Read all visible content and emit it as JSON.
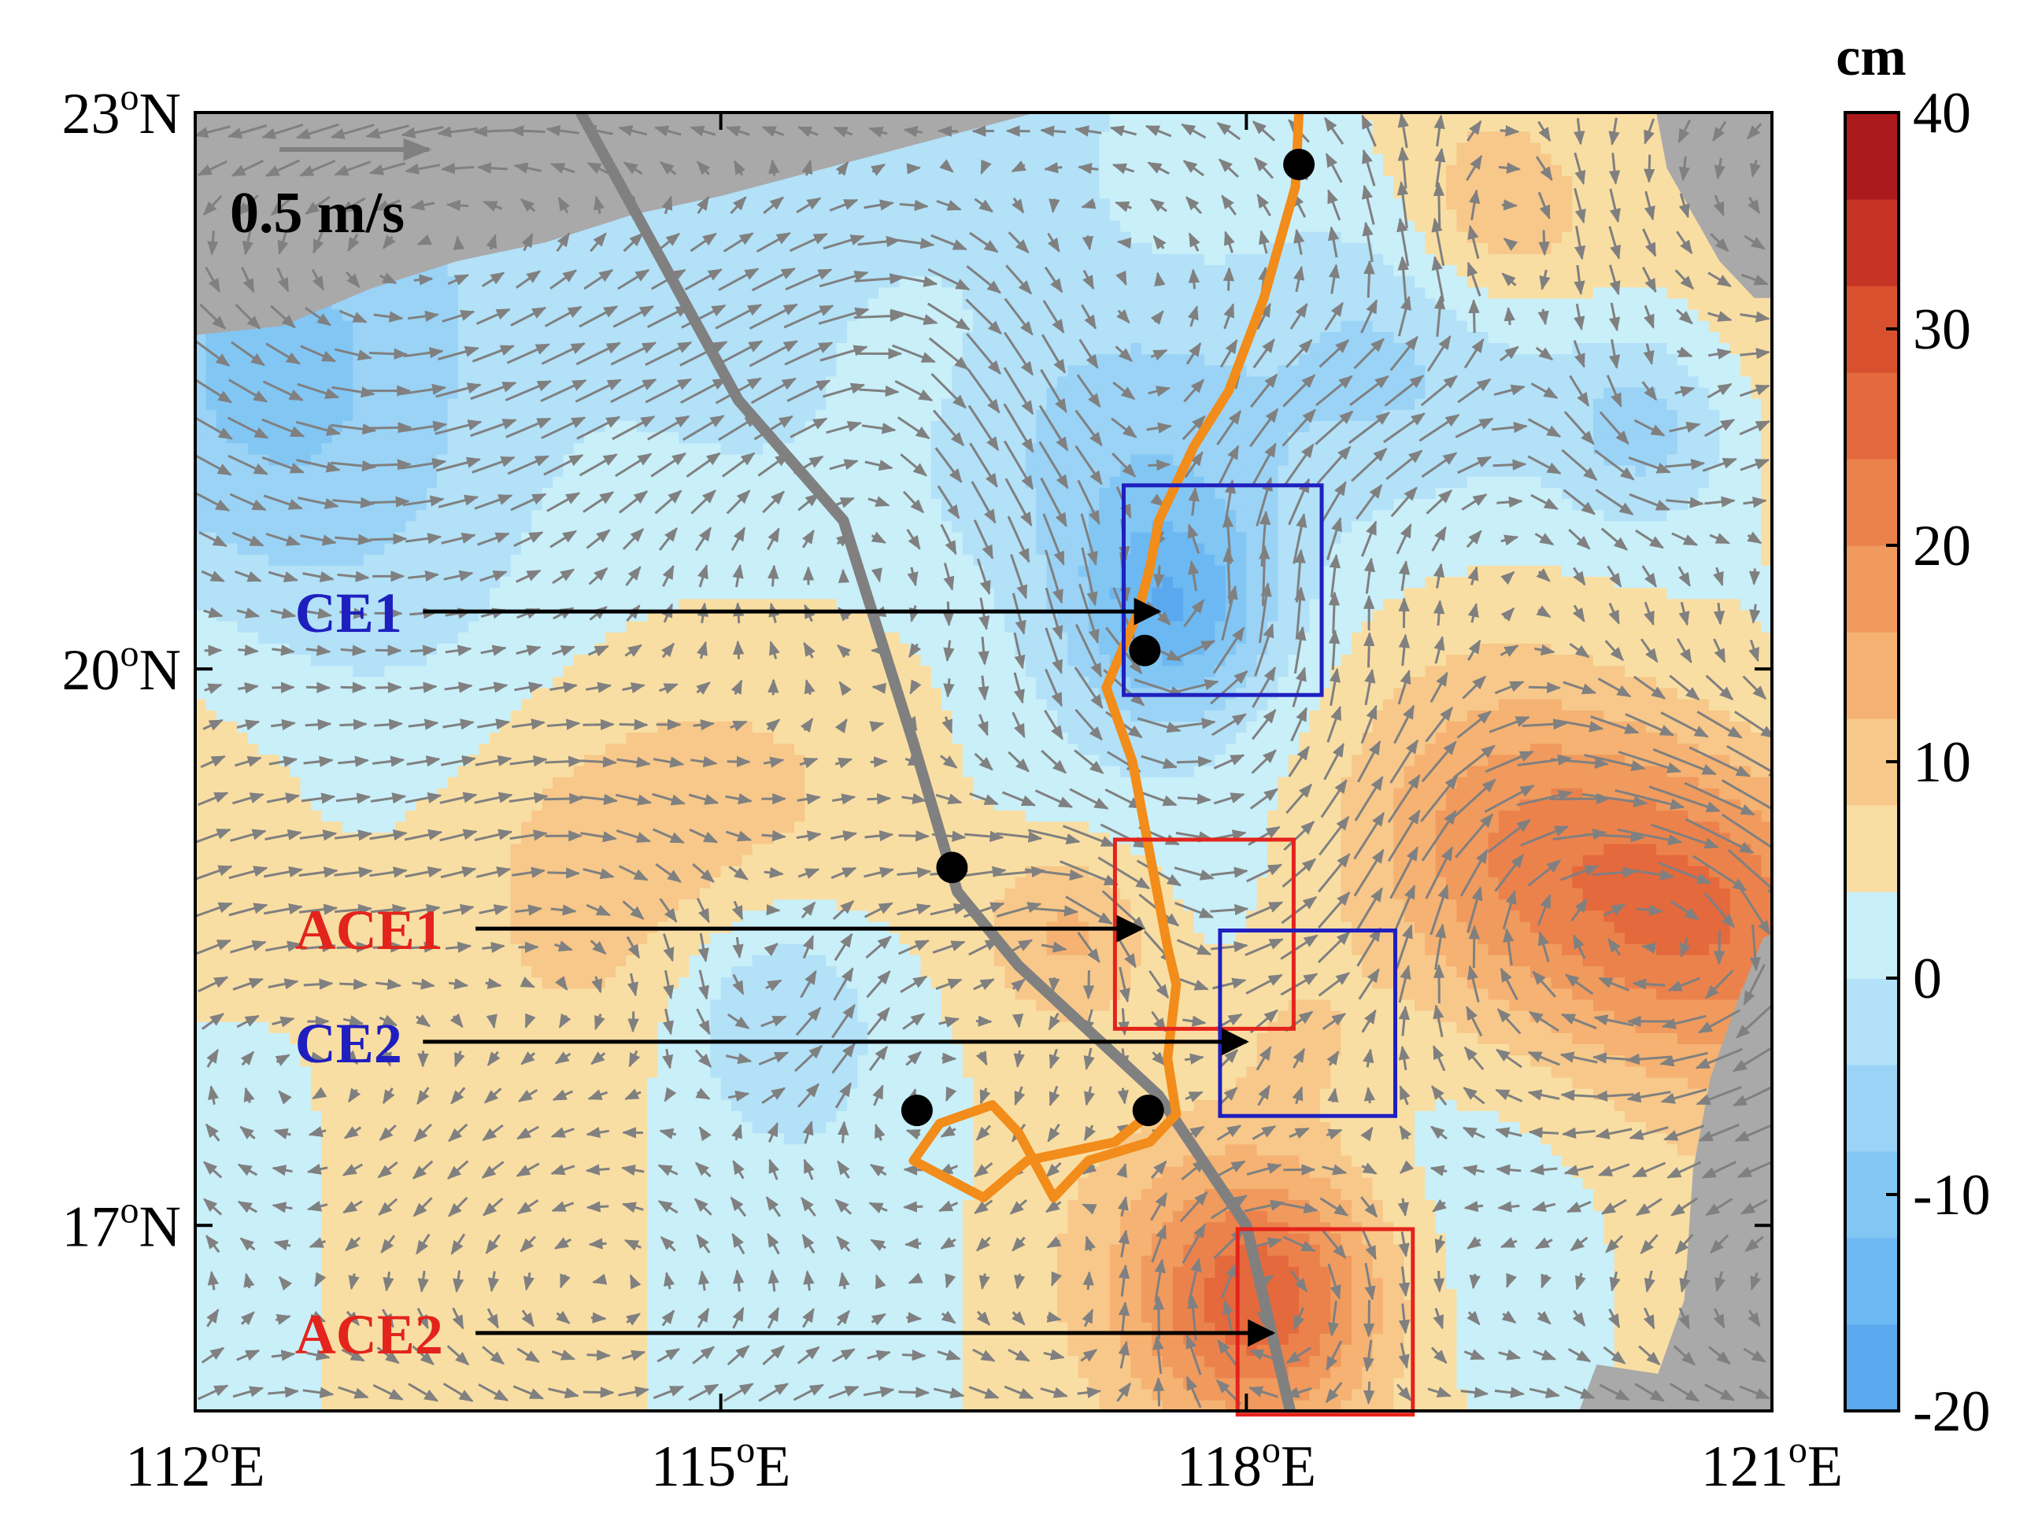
{
  "map": {
    "lon_range": [
      112,
      121
    ],
    "lat_range": [
      16,
      23
    ],
    "x_ticks": [
      {
        "value": 112,
        "deg": "112",
        "unit": "E"
      },
      {
        "value": 115,
        "deg": "115",
        "unit": "E"
      },
      {
        "value": 118,
        "deg": "118",
        "unit": "E"
      },
      {
        "value": 121,
        "deg": "121",
        "unit": "E"
      }
    ],
    "y_ticks": [
      {
        "value": 23,
        "deg": "23",
        "unit": "N"
      },
      {
        "value": 20,
        "deg": "20",
        "unit": "N"
      },
      {
        "value": 17,
        "deg": "17",
        "unit": "N"
      }
    ],
    "degree_symbol": "o",
    "land_color": "#a9a9a9",
    "vector_color": "#808080"
  },
  "scale_arrow": {
    "label": "0.5 m/s",
    "speed": 0.5
  },
  "colorbar": {
    "unit": "cm",
    "range": [
      -20,
      40
    ],
    "ticks": [
      "40",
      "30",
      "20",
      "10",
      "0",
      "-10",
      "-20"
    ],
    "colors": [
      "#5aa9ee",
      "#6cb8f2",
      "#82c6f4",
      "#9ad3f6",
      "#b2e1f8",
      "#c9eff9",
      "#f9dea3",
      "#f7c88a",
      "#f5b272",
      "#f09a5d",
      "#eb824c",
      "#e4693c",
      "#d9502f",
      "#c63425",
      "#aa1a1c"
    ]
  },
  "eddies": [
    {
      "name": "CE1",
      "color": "#1f1fbf",
      "label_color": "#1f1fbf",
      "lon_range": [
        117.3,
        118.43
      ],
      "lat_range": [
        19.86,
        20.99
      ],
      "arrow_from": [
        113.3,
        20.31
      ],
      "arrow_to": [
        117.5,
        20.31
      ],
      "label_at": [
        112.3,
        20.31
      ]
    },
    {
      "name": "ACE1",
      "color": "#e3241c",
      "label_color": "#e3241c",
      "lon_range": [
        117.25,
        118.27
      ],
      "lat_range": [
        18.06,
        19.08
      ],
      "arrow_from": [
        113.6,
        18.6
      ],
      "arrow_to": [
        117.4,
        18.6
      ],
      "label_at": [
        112.3,
        18.6
      ]
    },
    {
      "name": "CE2",
      "color": "#1f1fbf",
      "label_color": "#1f1fbf",
      "lon_range": [
        117.85,
        118.85
      ],
      "lat_range": [
        17.59,
        18.59
      ],
      "arrow_from": [
        113.3,
        17.99
      ],
      "arrow_to": [
        118.0,
        17.99
      ],
      "label_at": [
        112.3,
        17.99
      ]
    },
    {
      "name": "ACE2",
      "color": "#e3241c",
      "label_color": "#e3241c",
      "lon_range": [
        117.95,
        118.95
      ],
      "lat_range": [
        15.98,
        16.98
      ],
      "arrow_from": [
        113.6,
        16.42
      ],
      "arrow_to": [
        118.15,
        16.42
      ],
      "label_at": [
        112.3,
        16.42
      ]
    }
  ],
  "tracks": [
    {
      "name": "gray-track",
      "color": "#808080",
      "points": [
        [
          114.2,
          23.0
        ],
        [
          115.1,
          21.45
        ],
        [
          115.7,
          20.8
        ],
        [
          116.1,
          19.6
        ],
        [
          116.35,
          18.8
        ],
        [
          116.7,
          18.4
        ],
        [
          117.5,
          17.7
        ],
        [
          118.0,
          17.0
        ],
        [
          118.25,
          16.0
        ]
      ],
      "markers": [
        [
          116.32,
          18.93
        ]
      ]
    },
    {
      "name": "orange-track",
      "color": "#f28c1a",
      "points": [
        [
          118.3,
          23.0
        ],
        [
          118.28,
          22.6
        ],
        [
          118.1,
          22.0
        ],
        [
          117.9,
          21.5
        ],
        [
          117.7,
          21.2
        ],
        [
          117.5,
          20.8
        ],
        [
          117.45,
          20.55
        ],
        [
          117.38,
          20.3
        ],
        [
          117.2,
          19.9
        ],
        [
          117.35,
          19.5
        ],
        [
          117.45,
          19.0
        ],
        [
          117.55,
          18.5
        ],
        [
          117.6,
          18.3
        ],
        [
          117.55,
          17.9
        ],
        [
          117.6,
          17.6
        ],
        [
          117.45,
          17.45
        ],
        [
          117.1,
          17.35
        ],
        [
          116.9,
          17.15
        ],
        [
          116.7,
          17.5
        ],
        [
          116.55,
          17.65
        ],
        [
          116.25,
          17.55
        ],
        [
          116.1,
          17.35
        ],
        [
          116.3,
          17.25
        ],
        [
          116.5,
          17.15
        ],
        [
          116.75,
          17.35
        ],
        [
          117.0,
          17.4
        ],
        [
          117.25,
          17.45
        ],
        [
          117.42,
          17.58
        ]
      ],
      "markers": [
        [
          118.3,
          22.72
        ],
        [
          117.42,
          20.1
        ],
        [
          116.12,
          17.62
        ],
        [
          117.44,
          17.62
        ]
      ]
    }
  ],
  "ssha_field": {
    "ci": [
      -10,
      -5,
      0,
      5,
      10,
      15
    ],
    "features": [
      {
        "lon": 117.4,
        "lat": 21.2,
        "amp": -12,
        "r": 1.0
      },
      {
        "lon": 117.6,
        "lat": 20.3,
        "amp": -14,
        "r": 0.55
      },
      {
        "lon": 116.0,
        "lat": 22.6,
        "amp": -8,
        "r": 1.4
      },
      {
        "lon": 113.0,
        "lat": 22.0,
        "amp": -10,
        "r": 1.5
      },
      {
        "lon": 112.6,
        "lat": 21.0,
        "amp": -5,
        "r": 1.2
      },
      {
        "lon": 120.3,
        "lat": 21.3,
        "amp": -10,
        "r": 0.55
      },
      {
        "lon": 118.9,
        "lat": 21.8,
        "amp": -6,
        "r": 0.8
      },
      {
        "lon": 115.3,
        "lat": 18.2,
        "amp": -9,
        "r": 0.6
      },
      {
        "lon": 118.3,
        "lat": 18.0,
        "amp": 4,
        "r": 0.4
      },
      {
        "lon": 118.1,
        "lat": 16.6,
        "amp": 22,
        "r": 0.75
      },
      {
        "lon": 120.7,
        "lat": 18.7,
        "amp": 20,
        "r": 0.9
      },
      {
        "lon": 119.6,
        "lat": 19.0,
        "amp": 12,
        "r": 0.9
      },
      {
        "lon": 119.4,
        "lat": 22.4,
        "amp": 10,
        "r": 0.6
      },
      {
        "lon": 114.2,
        "lat": 19.0,
        "amp": 8,
        "r": 1.0
      },
      {
        "lon": 117.0,
        "lat": 18.6,
        "amp": 10,
        "r": 0.5
      },
      {
        "lon": 116.0,
        "lat": 21.9,
        "amp": 6,
        "r": 0.8
      }
    ],
    "background": 4
  }
}
